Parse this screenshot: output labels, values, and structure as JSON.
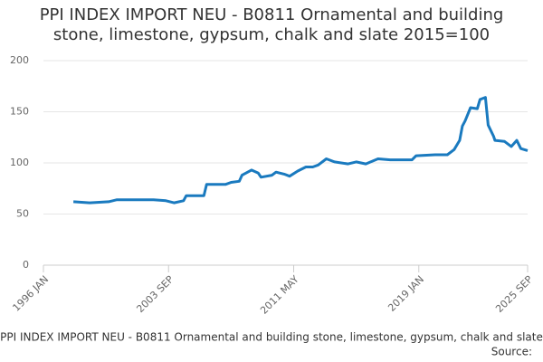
{
  "chart_data": {
    "type": "line",
    "title": "PPI INDEX IMPORT NEU - B0811 Ornamental and building stone, limestone, gypsum, chalk and slate 2015=100",
    "footer": "PPI INDEX IMPORT NEU - B0811 Ornamental and building stone, limestone, gypsum, chalk and slate",
    "source": "Source:",
    "x": [
      "1997 NOV",
      "1998 NOV",
      "2000 JAN",
      "2000 JUL",
      "2001 SEP",
      "2002 OCT",
      "2003 JUL",
      "2004 JAN",
      "2004 AUG",
      "2004 OCT",
      "2005 NOV",
      "2006 JAN",
      "2007 MAR",
      "2007 JUL",
      "2008 JAN",
      "2008 MAR",
      "2008 OCT",
      "2009 MAR",
      "2009 MAY",
      "2010 JAN",
      "2010 APR",
      "2010 OCT",
      "2011 FEB",
      "2011 AUG",
      "2012 FEB",
      "2012 JUL",
      "2012 NOV",
      "2013 MAY",
      "2013 NOV",
      "2014 SEP",
      "2015 MAR",
      "2015 OCT",
      "2016 JUL",
      "2017 APR",
      "2018 AUG",
      "2018 NOV",
      "2020 JAN",
      "2020 OCT",
      "2021 MAR",
      "2021 JUL",
      "2021 SEP",
      "2021 NOV",
      "2022 MAR",
      "2022 AUG",
      "2022 OCT",
      "2023 FEB",
      "2023 APR",
      "2023 AUG",
      "2023 SEP",
      "2024 APR",
      "2024 SEP",
      "2025 JAN",
      "2025 APR",
      "2025 SEP"
    ],
    "series": [
      {
        "color": "#1a7abf",
        "values": [
          62,
          61,
          62,
          64,
          64,
          64,
          63,
          61,
          63,
          68,
          68,
          79,
          79,
          81,
          82,
          88,
          93,
          90,
          86,
          88,
          91,
          89,
          87,
          92,
          96,
          96,
          98,
          104,
          101,
          99,
          101,
          99,
          104,
          103,
          103,
          107,
          108,
          108,
          113,
          122,
          136,
          141,
          154,
          153,
          162,
          164,
          137,
          126,
          122,
          121,
          116,
          122,
          114,
          112
        ]
      }
    ],
    "xlim": [
      "1996 JAN",
      "2025 SEP"
    ],
    "xticks": [
      "1996 JAN",
      "2003 SEP",
      "2011 MAY",
      "2019 JAN",
      "2025 SEP"
    ],
    "ylim": [
      0,
      200
    ],
    "yticks": [
      0,
      50,
      100,
      150,
      200
    ],
    "grid": true
  }
}
